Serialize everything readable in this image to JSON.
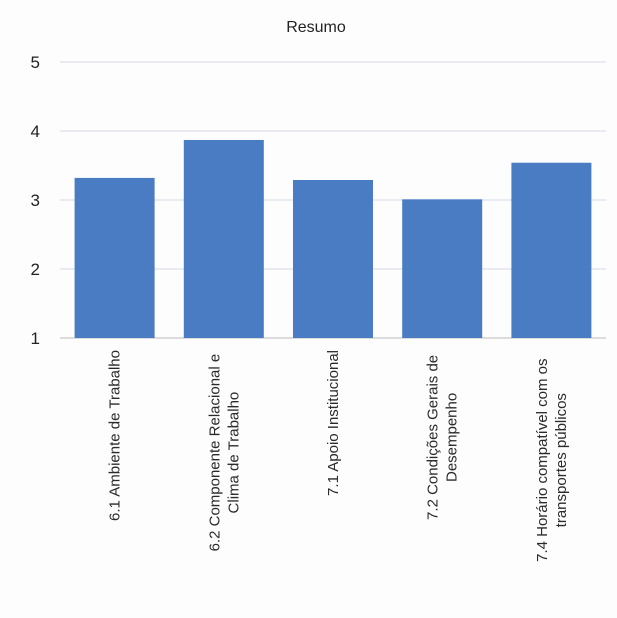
{
  "chart_data": {
    "type": "bar",
    "title": "Resumo",
    "xlabel": "",
    "ylabel": "",
    "categories": [
      [
        "6.1 Ambiente de Trabalho"
      ],
      [
        "6.2 Componente Relacional e",
        "Clima de Trabalho"
      ],
      [
        "7.1 Apoio Institucional"
      ],
      [
        "7.2 Condições Gerais de",
        "Desempenho"
      ],
      [
        "7.4 Horário compatível com os",
        "transportes públicos"
      ]
    ],
    "values": [
      3.32,
      3.87,
      3.29,
      3.01,
      3.54
    ],
    "ylim": [
      1,
      5
    ],
    "yticks": [
      1,
      2,
      3,
      4,
      5
    ],
    "grid": true,
    "legend": "none",
    "colors": {
      "bar": "#4a7cc4",
      "grid": "#d4d9e6",
      "axis": "#c8c8c8"
    }
  }
}
